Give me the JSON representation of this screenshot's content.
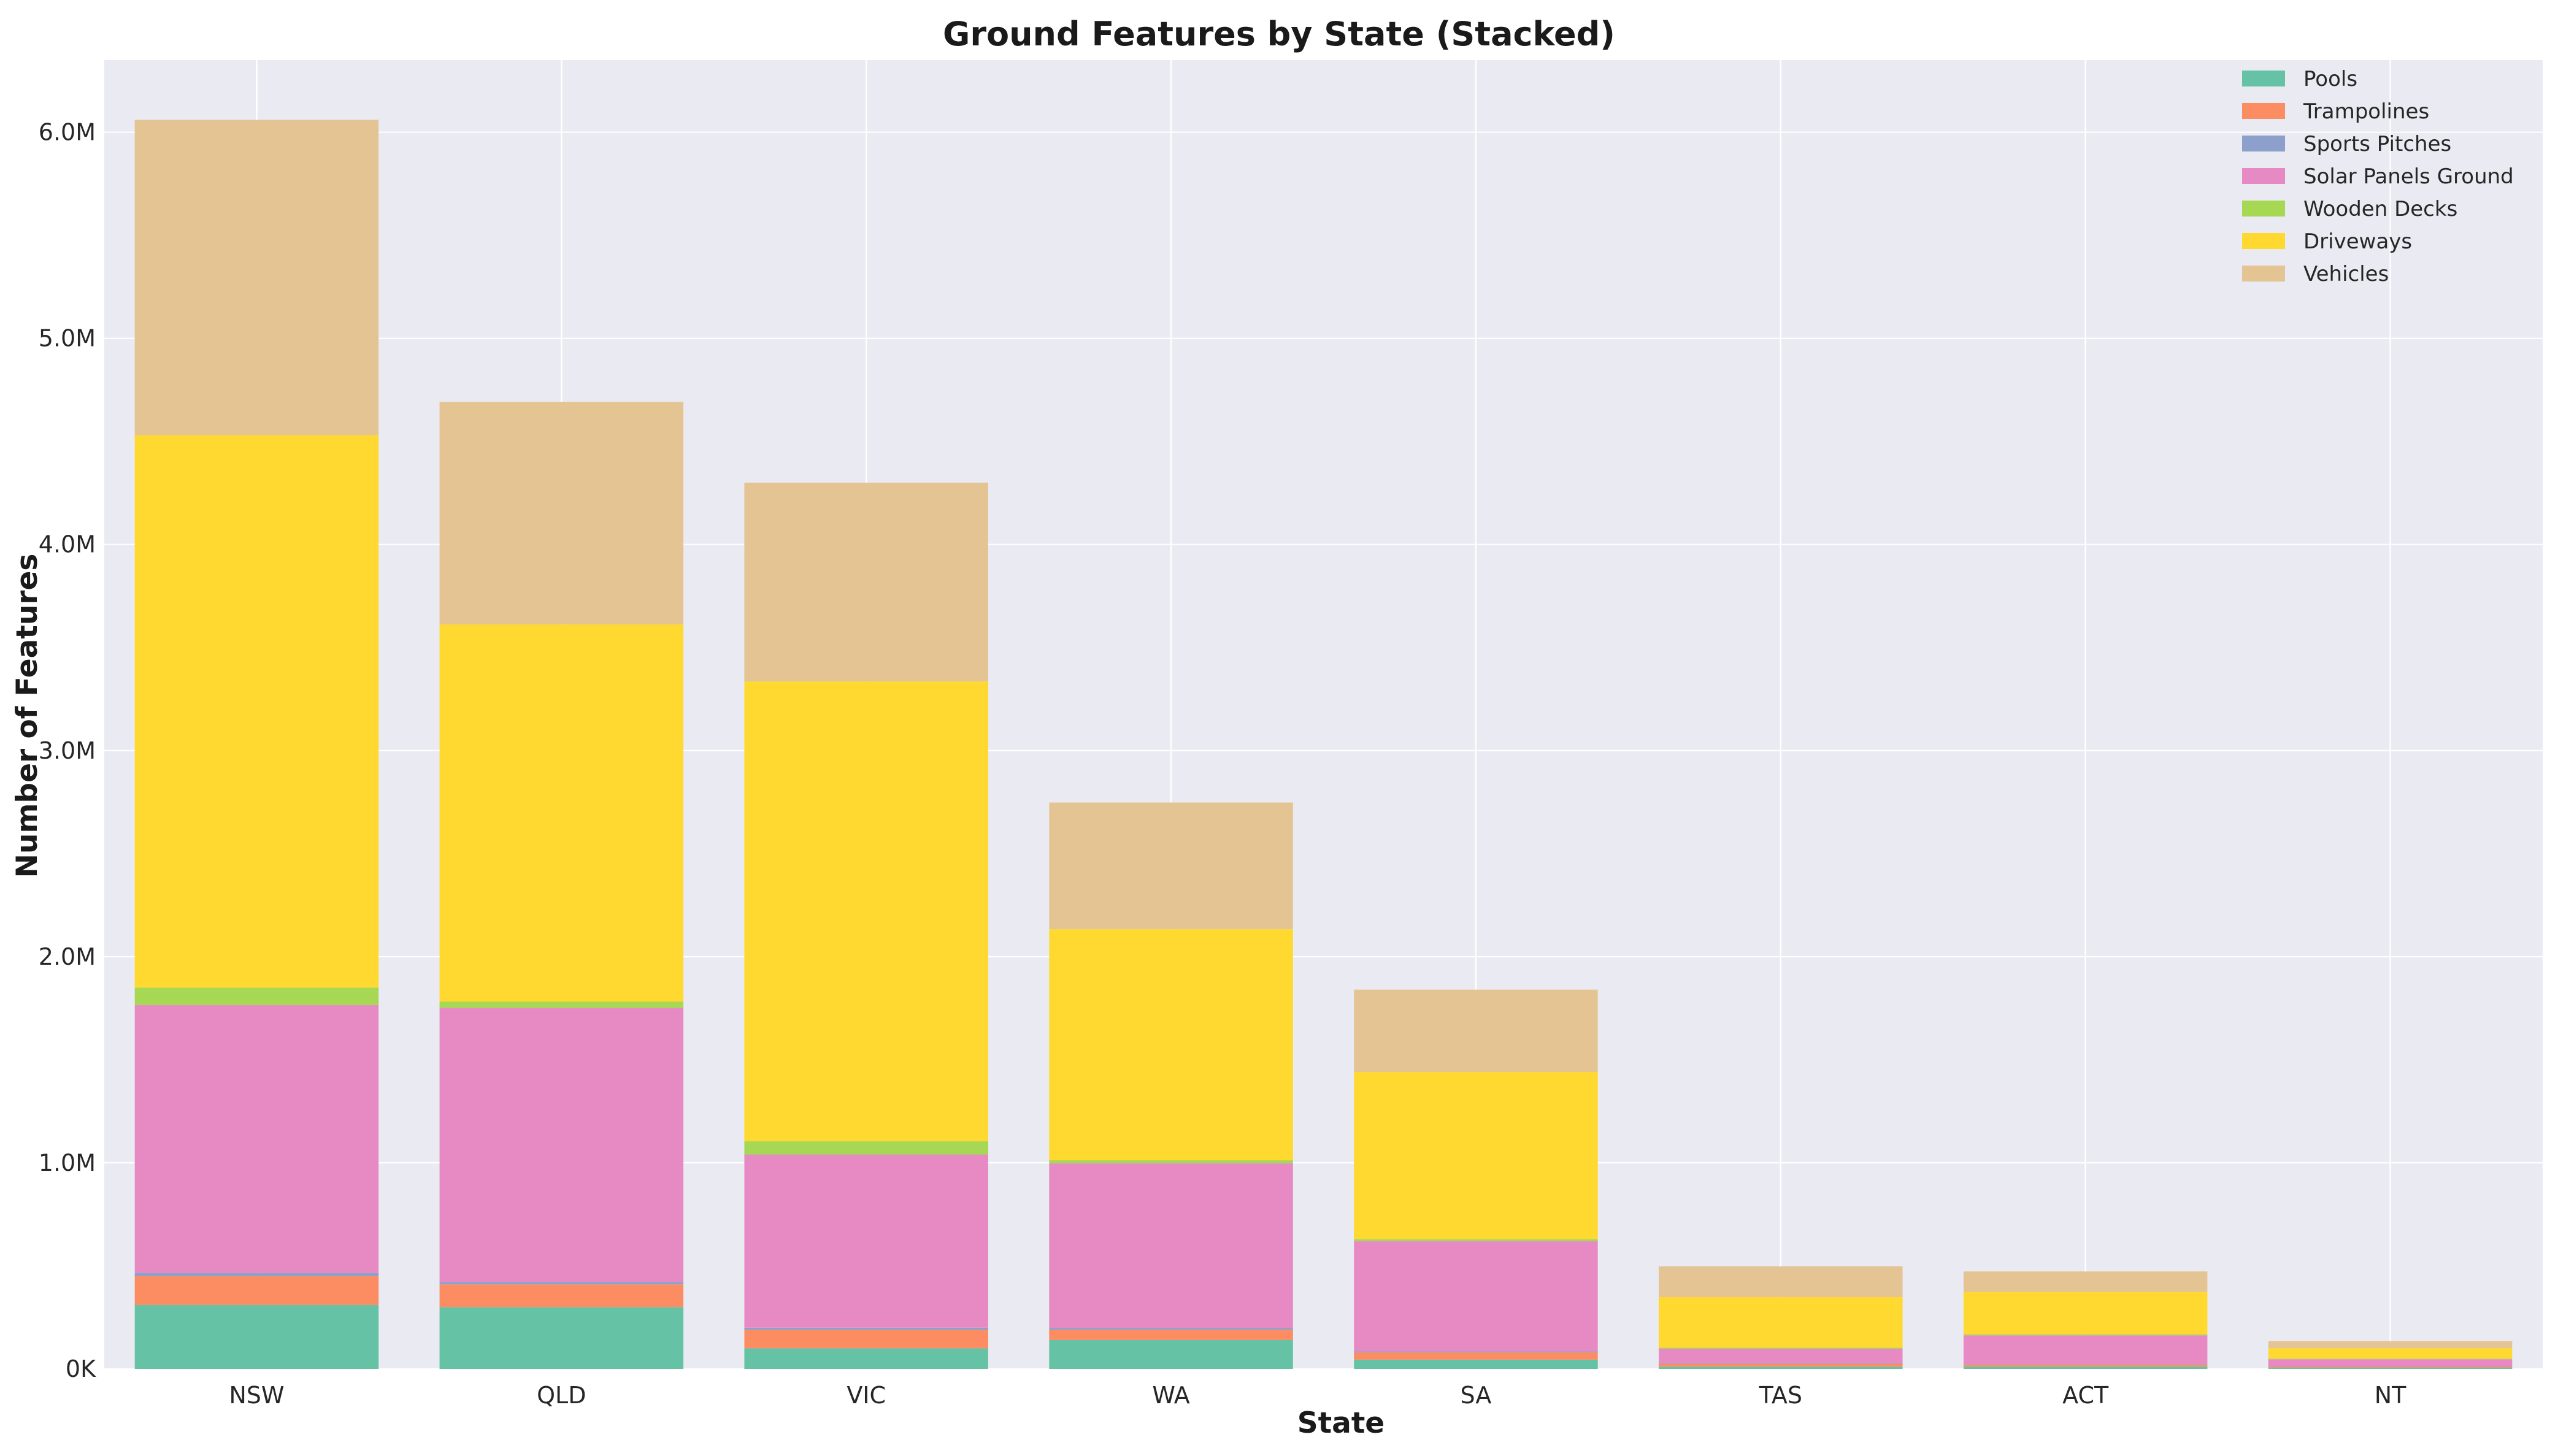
{
  "chart_data": {
    "type": "bar",
    "stacked": true,
    "title": "Ground Features by State (Stacked)",
    "xlabel": "State",
    "ylabel": "Number of Features",
    "categories": [
      "NSW",
      "QLD",
      "VIC",
      "WA",
      "SA",
      "TAS",
      "ACT",
      "NT"
    ],
    "ylim": [
      0,
      6350000
    ],
    "yticks": [
      0,
      1000000,
      2000000,
      3000000,
      4000000,
      5000000,
      6000000
    ],
    "ytick_labels": [
      "0K",
      "1.0M",
      "2.0M",
      "3.0M",
      "4.0M",
      "5.0M",
      "6.0M"
    ],
    "grid": true,
    "legend_position": "top-right",
    "series": [
      {
        "name": "Pools",
        "color": "#66c2a5",
        "values": [
          310000,
          300000,
          100000,
          140000,
          45000,
          10000,
          10000,
          5000
        ]
      },
      {
        "name": "Trampolines",
        "color": "#fc8d62",
        "values": [
          140000,
          110000,
          90000,
          50000,
          35000,
          15000,
          10000,
          5000
        ]
      },
      {
        "name": "Sports Pitches",
        "color": "#8da0cb",
        "values": [
          15000,
          12000,
          10000,
          8000,
          5000,
          3000,
          3000,
          2000
        ]
      },
      {
        "name": "Solar Panels Ground",
        "color": "#e78ac3",
        "values": [
          1300000,
          1330000,
          840000,
          800000,
          535000,
          70000,
          140000,
          35000
        ]
      },
      {
        "name": "Wooden Decks",
        "color": "#a6d854",
        "values": [
          85000,
          30000,
          65000,
          15000,
          10000,
          5000,
          5000,
          3000
        ]
      },
      {
        "name": "Driveways",
        "color": "#ffd92f",
        "values": [
          2680000,
          1830000,
          2230000,
          1120000,
          810000,
          245000,
          205000,
          50000
        ]
      },
      {
        "name": "Vehicles",
        "color": "#e5c494",
        "values": [
          1530000,
          1080000,
          965000,
          615000,
          400000,
          150000,
          100000,
          35000
        ]
      }
    ]
  }
}
